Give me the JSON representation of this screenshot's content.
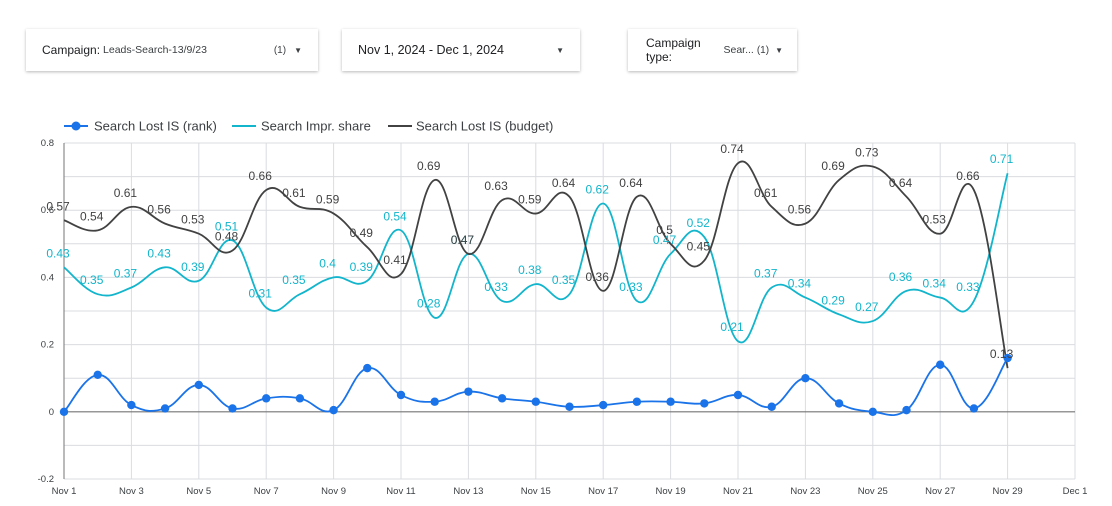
{
  "filters": {
    "campaign": {
      "label": "Campaign:",
      "value": "Leads-Search-13/9/23",
      "count": "(1)"
    },
    "date_range": {
      "value": "Nov 1, 2024 - Dec 1, 2024"
    },
    "campaign_type": {
      "label": "Campaign type:",
      "value": "Sear...",
      "count": "(1)"
    }
  },
  "colors": {
    "rank": "#1a73e8",
    "impr": "#12b5cb",
    "budget": "#424242",
    "grid": "#dadce0",
    "axis": "#757575"
  },
  "chart_data": {
    "type": "line",
    "x": [
      "Nov 1",
      "Nov 2",
      "Nov 3",
      "Nov 4",
      "Nov 5",
      "Nov 6",
      "Nov 7",
      "Nov 8",
      "Nov 9",
      "Nov 10",
      "Nov 11",
      "Nov 12",
      "Nov 13",
      "Nov 14",
      "Nov 15",
      "Nov 16",
      "Nov 17",
      "Nov 18",
      "Nov 19",
      "Nov 20",
      "Nov 21",
      "Nov 22",
      "Nov 23",
      "Nov 24",
      "Nov 25",
      "Nov 26",
      "Nov 27",
      "Nov 28",
      "Nov 29"
    ],
    "x_ticks": [
      "Nov 1",
      "Nov 3",
      "Nov 5",
      "Nov 7",
      "Nov 9",
      "Nov 11",
      "Nov 13",
      "Nov 15",
      "Nov 17",
      "Nov 19",
      "Nov 21",
      "Nov 23",
      "Nov 25",
      "Nov 27",
      "Nov 29",
      "Dec 1"
    ],
    "y_ticks": [
      "0.8",
      "0.6",
      "0.4",
      "0.2",
      "0",
      "-0.2"
    ],
    "ylim": [
      -0.2,
      0.8
    ],
    "grid": true,
    "legend_position": "top-left",
    "series": [
      {
        "name": "Search Lost IS (rank)",
        "key": "rank",
        "markers": true,
        "values": [
          0,
          0.11,
          0.02,
          0.01,
          0.08,
          0.01,
          0.04,
          0.04,
          0.005,
          0.13,
          0.05,
          0.03,
          0.06,
          0.04,
          0.03,
          0.015,
          0.02,
          0.03,
          0.03,
          0.025,
          0.05,
          0.015,
          0.1,
          0.025,
          0,
          0.005,
          0.14,
          0.01,
          0.16
        ],
        "labels": []
      },
      {
        "name": "Search Impr. share",
        "key": "impr",
        "markers": false,
        "values": [
          0.43,
          0.35,
          0.37,
          0.43,
          0.39,
          0.51,
          0.31,
          0.35,
          0.4,
          0.39,
          0.54,
          0.28,
          0.47,
          0.33,
          0.38,
          0.35,
          0.62,
          0.33,
          0.47,
          0.52,
          0.21,
          0.37,
          0.34,
          0.29,
          0.27,
          0.36,
          0.34,
          0.33,
          0.71
        ],
        "labels": [
          "0.43",
          "0.35",
          "0.37",
          "0.43",
          "0.39",
          "0.51",
          "0.31",
          "0.35",
          "0.4",
          "0.39",
          "0.54",
          "0.28",
          "0.47",
          "0.33",
          "0.38",
          "0.35",
          "0.62",
          "0.33",
          "0.47",
          "0.52",
          "0.21",
          "0.37",
          "0.34",
          "0.29",
          "0.27",
          "0.36",
          "0.34",
          "0.33",
          "0.71"
        ]
      },
      {
        "name": "Search Lost IS (budget)",
        "key": "budget",
        "markers": false,
        "values": [
          0.57,
          0.54,
          0.61,
          0.56,
          0.53,
          0.48,
          0.66,
          0.61,
          0.59,
          0.49,
          0.41,
          0.69,
          0.47,
          0.63,
          0.59,
          0.64,
          0.36,
          0.64,
          0.5,
          0.45,
          0.74,
          0.61,
          0.56,
          0.69,
          0.73,
          0.64,
          0.53,
          0.66,
          0.13
        ],
        "labels": [
          "0.57",
          "0.54",
          "0.61",
          "0.56",
          "0.53",
          "0.48",
          "0.66",
          "0.61",
          "0.59",
          "0.49",
          "0.41",
          "0.69",
          "0.47",
          "0.63",
          "0.59",
          "0.64",
          "0.36",
          "0.64",
          "0.5",
          "0.45",
          "0.74",
          "0.61",
          "0.56",
          "0.69",
          "0.73",
          "0.64",
          "0.53",
          "0.66",
          "0.13"
        ]
      }
    ]
  }
}
